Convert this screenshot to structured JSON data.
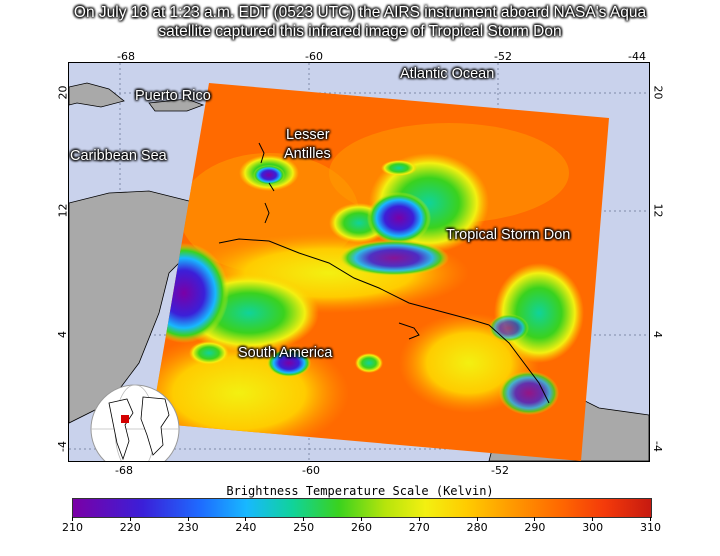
{
  "title_line1": "On July 18 at 1:23 a.m. EDT (0523 UTC) the AIRS instrument aboard NASA's Aqua",
  "title_line2": "satellite captured this infrared image of Tropical Storm Don",
  "map_labels": {
    "atlantic": "Atlantic Ocean",
    "puerto_rico": "Puerto Rico",
    "lesser_antilles_1": "Lesser",
    "lesser_antilles_2": "Antilles",
    "caribbean": "Caribbean Sea",
    "storm": "Tropical Storm Don",
    "south_america": "South America"
  },
  "lon_ticks": [
    "-68",
    "-60",
    "-52",
    "-44"
  ],
  "lat_ticks": [
    "20",
    "12",
    "4",
    "-4"
  ],
  "colorbar": {
    "title": "Brightness Temperature Scale (Kelvin)",
    "ticks": [
      "210",
      "220",
      "230",
      "240",
      "250",
      "260",
      "270",
      "280",
      "290",
      "300",
      "310"
    ]
  },
  "colors": {
    "ocean": "#c9d2ec",
    "land": "#a9a9a9",
    "cold": "#7a00a6",
    "warm": "#ff6a00"
  }
}
